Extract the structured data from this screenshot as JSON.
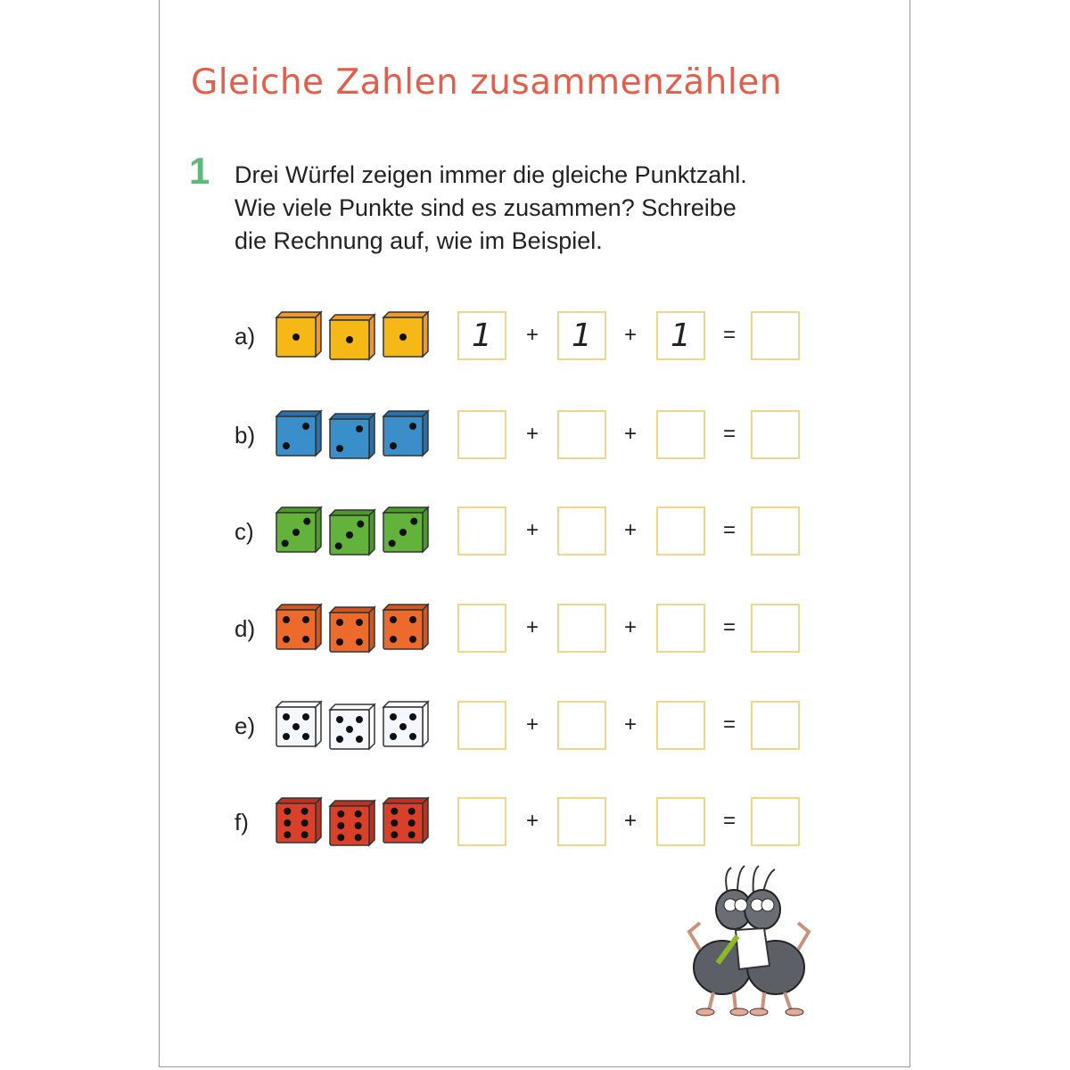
{
  "title": "Gleiche Zahlen zusammenzählen",
  "task": {
    "number": "1",
    "lines": [
      "Drei Würfel zeigen immer die gleiche Punktzahl.",
      "Wie viele Punkte sind es zusammen? Schreibe",
      "die Rechnung auf, wie im Beispiel."
    ]
  },
  "operators": {
    "plus": "+",
    "equals": "="
  },
  "rows": [
    {
      "label": "a)",
      "pips": 1,
      "color": "#f6b817",
      "side": "#ee9a2a",
      "answers": [
        "1",
        "1",
        "1",
        ""
      ]
    },
    {
      "label": "b)",
      "pips": 2,
      "color": "#3a8fca",
      "side": "#2a70a8",
      "answers": [
        "",
        "",
        "",
        ""
      ]
    },
    {
      "label": "c)",
      "pips": 3,
      "color": "#62b23c",
      "side": "#4a9a2a",
      "answers": [
        "",
        "",
        "",
        ""
      ]
    },
    {
      "label": "d)",
      "pips": 4,
      "color": "#ec6a2c",
      "side": "#d4541e",
      "answers": [
        "",
        "",
        "",
        ""
      ]
    },
    {
      "label": "e)",
      "pips": 5,
      "color": "#f4f8fc",
      "side": "#ffffff",
      "answers": [
        "",
        "",
        "",
        ""
      ]
    },
    {
      "label": "f)",
      "pips": 6,
      "color": "#d8402a",
      "side": "#c0301e",
      "answers": [
        "",
        "",
        "",
        ""
      ]
    }
  ],
  "colors": {
    "title": "#e2604b",
    "task_number": "#5fb97c",
    "answer_box_border": "#f0d68a"
  }
}
